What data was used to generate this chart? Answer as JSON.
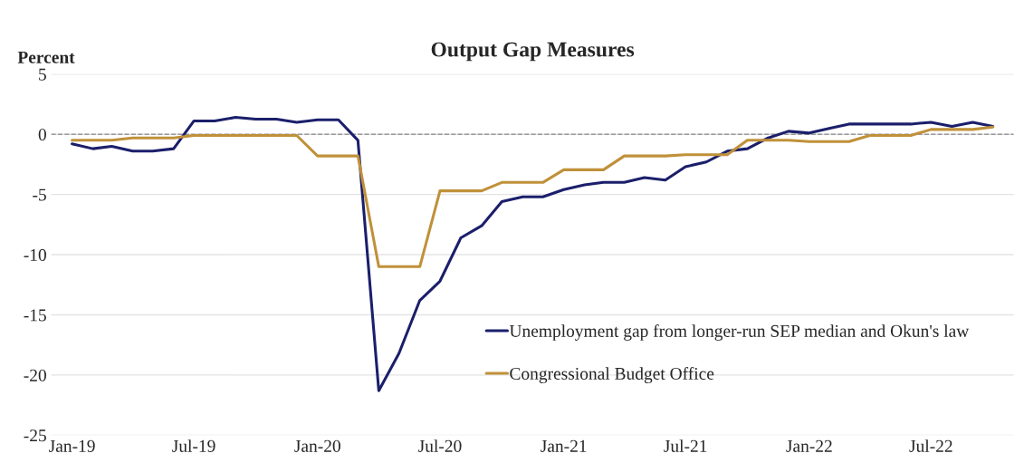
{
  "chart_data": {
    "type": "line",
    "title": "Output Gap Measures",
    "ylabel": "Percent",
    "x": [
      "2019-01",
      "2019-02",
      "2019-03",
      "2019-04",
      "2019-05",
      "2019-06",
      "2019-07",
      "2019-08",
      "2019-09",
      "2019-10",
      "2019-11",
      "2019-12",
      "2020-01",
      "2020-02",
      "2020-03",
      "2020-04",
      "2020-05",
      "2020-06",
      "2020-07",
      "2020-08",
      "2020-09",
      "2020-10",
      "2020-11",
      "2020-12",
      "2021-01",
      "2021-02",
      "2021-03",
      "2021-04",
      "2021-05",
      "2021-06",
      "2021-07",
      "2021-08",
      "2021-09",
      "2021-10",
      "2021-11",
      "2021-12",
      "2022-01",
      "2022-02",
      "2022-03",
      "2022-04",
      "2022-05",
      "2022-06",
      "2022-07",
      "2022-08",
      "2022-09",
      "2022-10"
    ],
    "series": [
      {
        "name": "Unemployment gap from longer-run SEP median and Okun's law",
        "color": "#1b1f6b",
        "values": [
          -0.8,
          -1.2,
          -1.0,
          -1.4,
          -1.4,
          -1.2,
          1.1,
          1.1,
          1.4,
          1.25,
          1.25,
          1.0,
          1.2,
          1.2,
          -0.5,
          -21.3,
          -18.2,
          -13.8,
          -12.2,
          -8.6,
          -7.6,
          -5.6,
          -5.2,
          -5.2,
          -4.6,
          -4.2,
          -4.0,
          -4.0,
          -3.6,
          -3.8,
          -2.7,
          -2.3,
          -1.4,
          -1.2,
          -0.3,
          0.25,
          0.1,
          0.5,
          0.85,
          0.85,
          0.85,
          0.85,
          1.0,
          0.65,
          1.0,
          0.65
        ]
      },
      {
        "name": "Congressional Budget Office",
        "color": "#c0913a",
        "values": [
          -0.5,
          -0.5,
          -0.5,
          -0.3,
          -0.3,
          -0.3,
          -0.1,
          -0.1,
          -0.1,
          -0.1,
          -0.1,
          -0.1,
          -1.8,
          -1.8,
          -1.8,
          -11.0,
          -11.0,
          -11.0,
          -4.7,
          -4.7,
          -4.7,
          -4.0,
          -4.0,
          -4.0,
          -2.95,
          -2.95,
          -2.95,
          -1.8,
          -1.8,
          -1.8,
          -1.7,
          -1.7,
          -1.7,
          -0.5,
          -0.5,
          -0.5,
          -0.6,
          -0.6,
          -0.6,
          -0.1,
          -0.1,
          -0.1,
          0.4,
          0.4,
          0.4,
          0.6
        ]
      }
    ],
    "xlim": [
      "2018-12",
      "2022-11"
    ],
    "xticks": [
      {
        "value": "2019-01",
        "label": "Jan-19"
      },
      {
        "value": "2019-07",
        "label": "Jul-19"
      },
      {
        "value": "2020-01",
        "label": "Jan-20"
      },
      {
        "value": "2020-07",
        "label": "Jul-20"
      },
      {
        "value": "2021-01",
        "label": "Jan-21"
      },
      {
        "value": "2021-07",
        "label": "Jul-21"
      },
      {
        "value": "2022-01",
        "label": "Jan-22"
      },
      {
        "value": "2022-07",
        "label": "Jul-22"
      }
    ],
    "ylim": [
      -25,
      5
    ],
    "yticks": [
      -25,
      -20,
      -15,
      -10,
      -5,
      0,
      5
    ],
    "ref_lines": [
      {
        "axis": "y",
        "value": 0,
        "color": "#999999",
        "line_style": "dashed"
      }
    ],
    "grid": "y",
    "legend": "bottom right",
    "marker": "none",
    "line_style": "solid"
  }
}
